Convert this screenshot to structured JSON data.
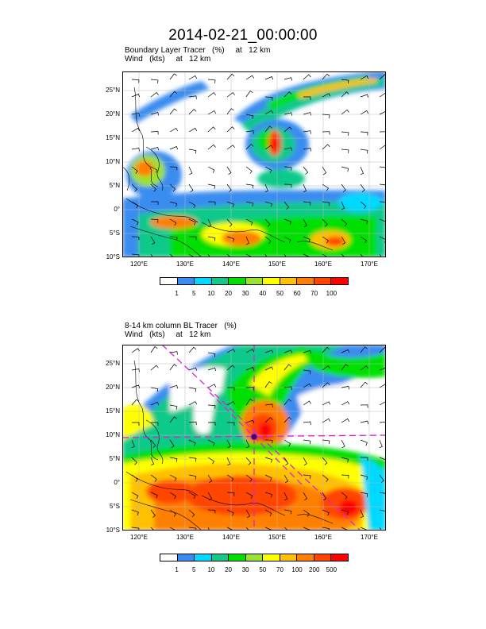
{
  "title": "2014-02-21_00:00:00",
  "panels": [
    {
      "subtitle1": "Boundary Layer Tracer   (%)     at   12 km",
      "subtitle2": "Wind   (kts)     at   12 km",
      "lat_ticks": [
        "25°N",
        "20°N",
        "15°N",
        "10°N",
        "5°N",
        "0°",
        "5°S",
        "10°S"
      ],
      "lon_ticks": [
        "120°E",
        "130°E",
        "140°E",
        "150°E",
        "160°E",
        "170°E"
      ],
      "colorbar_labels": [
        "1",
        "5",
        "10",
        "20",
        "30",
        "40",
        "50",
        "60",
        "70",
        "100"
      ],
      "colorbar_colors": [
        "#ffffff",
        "#3a8cf0",
        "#00d9ff",
        "#10c98a",
        "#00e000",
        "#9be22d",
        "#ffff00",
        "#ffc000",
        "#ff8000",
        "#ff4500",
        "#ff0000"
      ]
    },
    {
      "subtitle1": "8-14 km column BL Tracer   (%)",
      "subtitle2": "Wind   (kts)     at   12 km",
      "lat_ticks": [
        "25°N",
        "20°N",
        "15°N",
        "10°N",
        "5°N",
        "0°",
        "5°S",
        "10°S"
      ],
      "lon_ticks": [
        "120°E",
        "130°E",
        "140°E",
        "150°E",
        "160°E",
        "170°E"
      ],
      "colorbar_labels": [
        "1",
        "5",
        "10",
        "20",
        "30",
        "50",
        "70",
        "100",
        "200",
        "500"
      ],
      "colorbar_colors": [
        "#ffffff",
        "#3a8cf0",
        "#00d9ff",
        "#10c98a",
        "#00e000",
        "#9be22d",
        "#ffff00",
        "#ffc000",
        "#ff8000",
        "#ff4500",
        "#ff0000"
      ]
    }
  ]
}
